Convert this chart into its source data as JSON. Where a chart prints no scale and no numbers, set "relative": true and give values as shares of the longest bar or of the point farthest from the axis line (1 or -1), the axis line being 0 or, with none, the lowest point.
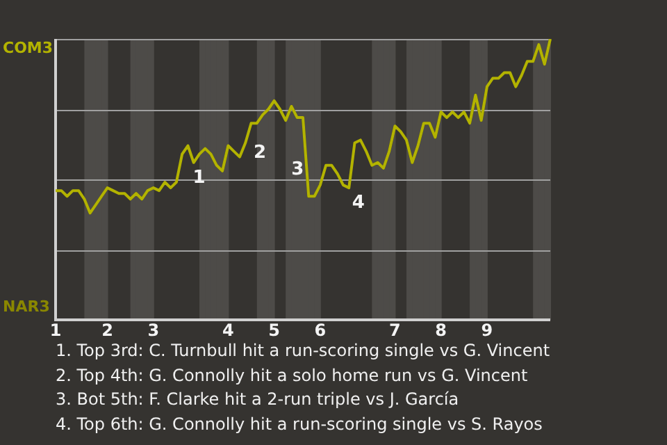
{
  "chart_data": {
    "type": "line",
    "relative": true,
    "categories": [
      "1",
      null,
      null,
      null,
      null,
      null,
      null,
      null,
      null,
      "2",
      null,
      null,
      null,
      null,
      null,
      null,
      null,
      "3",
      null,
      null,
      null,
      null,
      null,
      null,
      null,
      null,
      null,
      null,
      null,
      null,
      "4",
      null,
      null,
      null,
      null,
      null,
      null,
      null,
      "5",
      null,
      null,
      null,
      null,
      null,
      null,
      null,
      "6",
      null,
      null,
      null,
      null,
      null,
      null,
      null,
      null,
      null,
      null,
      null,
      null,
      "7",
      null,
      null,
      null,
      null,
      null,
      null,
      null,
      "8",
      null,
      null,
      null,
      null,
      null,
      null,
      null,
      "9",
      null,
      null,
      null,
      null,
      null,
      null,
      null,
      null,
      null,
      null,
      null
    ],
    "values": [
      0.46,
      0.46,
      0.44,
      0.46,
      0.46,
      0.43,
      0.38,
      0.41,
      0.44,
      0.47,
      0.46,
      0.45,
      0.45,
      0.43,
      0.45,
      0.43,
      0.46,
      0.47,
      0.46,
      0.49,
      0.47,
      0.49,
      0.59,
      0.62,
      0.56,
      0.59,
      0.61,
      0.59,
      0.55,
      0.53,
      0.62,
      0.6,
      0.58,
      0.63,
      0.7,
      0.7,
      0.73,
      0.75,
      0.78,
      0.75,
      0.71,
      0.76,
      0.72,
      0.72,
      0.44,
      0.44,
      0.48,
      0.55,
      0.55,
      0.52,
      0.48,
      0.47,
      0.63,
      0.64,
      0.6,
      0.55,
      0.56,
      0.54,
      0.6,
      0.69,
      0.67,
      0.64,
      0.56,
      0.62,
      0.7,
      0.7,
      0.65,
      0.74,
      0.72,
      0.74,
      0.72,
      0.74,
      0.7,
      0.8,
      0.71,
      0.83,
      0.86,
      0.86,
      0.88,
      0.88,
      0.83,
      0.87,
      0.92,
      0.92,
      0.98,
      0.91,
      1
    ],
    "colors": [
      "#b3b300",
      "#b3b300",
      "#b3b300",
      "#b3b300",
      "#b3b300",
      "#4a4800",
      "#4a4800",
      "#4a4800",
      "#4a4800",
      "#b3b300",
      "#b3b300",
      "#b3b300",
      "#b3b300",
      "#4a4800",
      "#4a4800",
      "#4a4800",
      "#4a4800",
      "#b3b300",
      "#b3b300",
      "#b3b300",
      "#b3b300",
      "#b3b300",
      "#b3b300",
      "#b3b300",
      "#b3b300",
      "#4a4800",
      "#4a4800",
      "#4a4800",
      "#4a4800",
      "#4a4800",
      "#b3b300",
      "#b3b300",
      "#b3b300",
      "#b3b300",
      "#b3b300",
      "#4a4800",
      "#4a4800",
      "#4a4800",
      "#b3b300",
      "#b3b300",
      "#4a4800",
      "#4a4800",
      "#4a4800",
      "#4a4800",
      "#4a4800",
      "#4a4800",
      "#b3b300",
      "#b3b300",
      "#b3b300",
      "#b3b300",
      "#b3b300",
      "#b3b300",
      "#b3b300",
      "#b3b300",
      "#b3b300",
      "#4a4800",
      "#4a4800",
      "#4a4800",
      "#4a4800",
      "#b3b300",
      "#b3b300",
      "#4a4800",
      "#4a4800",
      "#4a4800",
      "#4a4800",
      "#4a4800",
      "#4a4800",
      "#b3b300",
      "#b3b300",
      "#b3b300",
      "#b3b300",
      "#b3b300",
      "#4a4800",
      "#4a4800",
      "#4a4800",
      "#b3b300",
      "#b3b300",
      "#b3b300",
      "#b3b300",
      "#b3b300",
      "#b3b300",
      "#b3b300",
      "#b3b300",
      "#4a4800",
      "#4a4800",
      "#4a4800",
      "#4a4800"
    ],
    "marker": "none",
    "line_style": "solid",
    "legend": false,
    "annotations": [
      "COM3",
      "NAR3",
      "1",
      "2",
      "3",
      "4",
      "1. Top 3rd: C. Turnbull hit a run-scoring single vs G. Vincent",
      "2. Top 4th: G. Connolly hit a solo home run vs G. Vincent",
      "3. Bot 5th: F. Clarke hit a 2-run triple vs J. García",
      "4. Top 6th: G. Connolly hit a run-scoring single vs S. Rayos"
    ]
  }
}
